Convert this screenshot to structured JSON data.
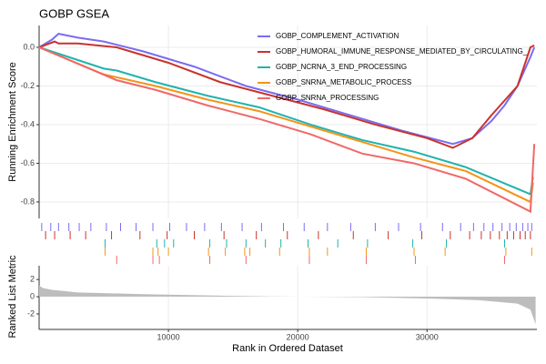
{
  "chart_data": {
    "type": "line",
    "title": "GOBP GSEA",
    "y_label": "Running Enrichment Score",
    "x_label": "Rank in Ordered Dataset",
    "xlim": [
      0,
      38500
    ],
    "xticks": [
      10000,
      20000,
      30000
    ],
    "ylim": [
      -0.885,
      0.113
    ],
    "yticks": [
      {
        "value": 0,
        "label": "0.0"
      },
      -0.2,
      -0.4,
      -0.6,
      -0.8
    ],
    "grid": true,
    "legend": "top-right",
    "series": [
      {
        "name": "GOBP_COMPLEMENT_ACTIVATION",
        "color": "#7b6cf0",
        "x": [
          0,
          1000,
          1500,
          3000,
          5000,
          8000,
          12000,
          16000,
          20000,
          24000,
          28000,
          32000,
          33500,
          35000,
          36000,
          37000,
          38000,
          38300
        ],
        "values": [
          0,
          0.04,
          0.07,
          0.05,
          0.03,
          -0.02,
          -0.1,
          -0.2,
          -0.27,
          -0.35,
          -0.43,
          -0.5,
          -0.47,
          -0.38,
          -0.3,
          -0.2,
          -0.05,
          0.0
        ],
        "hits": [
          200,
          900,
          1500,
          2300,
          3100,
          4000,
          5200,
          6300,
          7500,
          8800,
          10100,
          11400,
          12800,
          14100,
          15700,
          17200,
          18900,
          20500,
          22300,
          24100,
          26000,
          27800,
          29500,
          31200,
          32600,
          33600,
          34400,
          35100,
          35800,
          36400,
          36900,
          37400,
          37800,
          38100
        ]
      },
      {
        "name": "GOBP_HUMORAL_IMMUNE_RESPONSE_MEDIATED_BY_CIRCULATING_",
        "color": "#c8332d",
        "x": [
          0,
          1200,
          1500,
          3000,
          6000,
          10000,
          14000,
          18000,
          22000,
          26000,
          30000,
          32000,
          33500,
          35000,
          37000,
          38000,
          38300
        ],
        "values": [
          0,
          0.03,
          0.02,
          0.02,
          0.0,
          -0.08,
          -0.18,
          -0.25,
          -0.32,
          -0.4,
          -0.47,
          -0.52,
          -0.47,
          -0.35,
          -0.2,
          0.0,
          0.01
        ],
        "hits": [
          500,
          1200,
          2400,
          3600,
          5600,
          7800,
          9900,
          12000,
          14300,
          16800,
          19200,
          21600,
          24300,
          27000,
          29600,
          31800,
          33300,
          34200,
          34900,
          35600,
          36200,
          36700,
          37200,
          37600,
          38000
        ]
      },
      {
        "name": "GOBP_NCRNA_3_END_PROCESSING",
        "color": "#1fb3ad",
        "x": [
          0,
          5000,
          6000,
          9000,
          13000,
          17000,
          21000,
          25000,
          29000,
          33000,
          38000,
          38200
        ],
        "values": [
          0,
          -0.11,
          -0.12,
          -0.18,
          -0.25,
          -0.31,
          -0.4,
          -0.48,
          -0.54,
          -0.62,
          -0.76,
          -0.67
        ],
        "hits": [
          5100,
          9100,
          9700,
          10400,
          13200,
          14500,
          16000,
          17500,
          18700,
          20800,
          23100,
          25400,
          28900,
          31500,
          36000
        ]
      },
      {
        "name": "GOBP_SNRNA_METABOLIC_PROCESS",
        "color": "#f39419",
        "x": [
          0,
          5000,
          9000,
          13000,
          17000,
          21000,
          25000,
          29000,
          33000,
          38000,
          38200
        ],
        "values": [
          0,
          -0.14,
          -0.2,
          -0.27,
          -0.33,
          -0.41,
          -0.49,
          -0.57,
          -0.64,
          -0.8,
          -0.7
        ],
        "hits": [
          5100,
          8800,
          9200,
          10000,
          13100,
          14400,
          15900,
          16300,
          18600,
          20900,
          22300,
          25300,
          29000,
          31400,
          36100,
          38100
        ]
      },
      {
        "name": "GOBP_SNRNA_PROCESSING",
        "color": "#f06868",
        "x": [
          0,
          6000,
          9000,
          13000,
          17000,
          21000,
          25000,
          29000,
          33000,
          38000,
          38300
        ],
        "values": [
          0,
          -0.17,
          -0.22,
          -0.3,
          -0.37,
          -0.45,
          -0.55,
          -0.6,
          -0.68,
          -0.85,
          -0.5
        ],
        "hits": [
          6000,
          8800,
          9300,
          13200,
          16000,
          20900,
          25300,
          29100,
          36000
        ]
      }
    ],
    "metric": {
      "y_label": "Ranked List Metric",
      "ylim": [
        -3.8,
        3.6
      ],
      "yticks": [
        -2,
        0,
        2
      ],
      "color": "#bdbdbd",
      "x": [
        0,
        300,
        1000,
        3000,
        8000,
        15000,
        18000,
        25000,
        30000,
        34000,
        37000,
        38000,
        38400
      ],
      "values": [
        1.3,
        1.0,
        0.8,
        0.5,
        0.3,
        0.1,
        0.03,
        -0.05,
        -0.2,
        -0.4,
        -0.8,
        -1.5,
        -3.2
      ]
    }
  }
}
